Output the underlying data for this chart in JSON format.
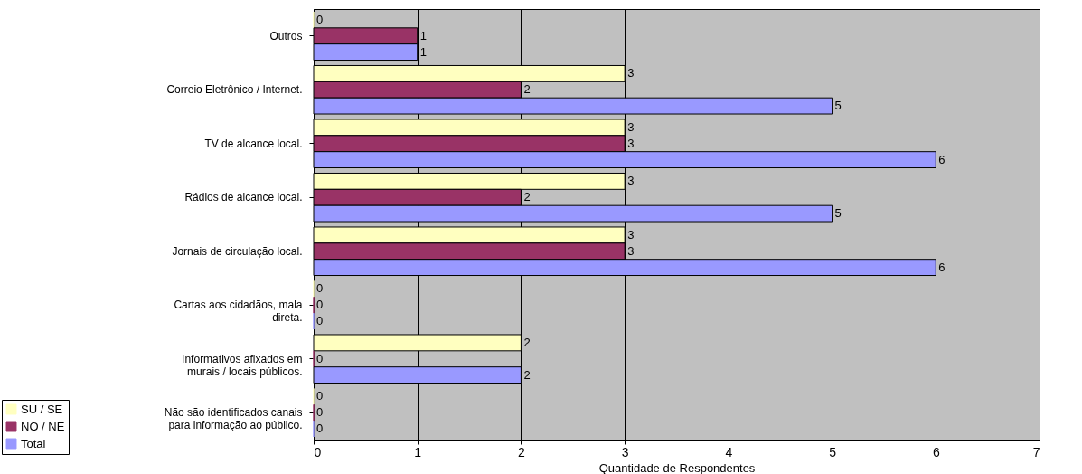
{
  "chart_data": {
    "type": "bar",
    "orientation": "horizontal",
    "xlabel": "Quantidade de Respondentes",
    "categories": [
      "Outros",
      "Correio Eletrônico / Internet.",
      "TV de alcance local.",
      "Rádios de alcance local.",
      "Jornais de circulação local.",
      "Cartas aos cidadãos, mala direta.",
      "Informativos afixados em murais / locais públicos.",
      "Não são identificados canais para informação ao público."
    ],
    "series": [
      {
        "name": "SU / SE",
        "color": "#ffffc0",
        "values": [
          0,
          3,
          3,
          3,
          3,
          0,
          2,
          0
        ]
      },
      {
        "name": "NO / NE",
        "color": "#993366",
        "values": [
          1,
          2,
          3,
          2,
          3,
          0,
          0,
          0
        ]
      },
      {
        "name": "Total",
        "color": "#9999ff",
        "values": [
          1,
          5,
          6,
          5,
          6,
          0,
          2,
          0
        ]
      }
    ],
    "xlim": [
      0,
      7
    ],
    "xticks": [
      0,
      1,
      2,
      3,
      4,
      5,
      6,
      7
    ],
    "grid": "x",
    "legend": "bottom left",
    "data_labels": true
  }
}
